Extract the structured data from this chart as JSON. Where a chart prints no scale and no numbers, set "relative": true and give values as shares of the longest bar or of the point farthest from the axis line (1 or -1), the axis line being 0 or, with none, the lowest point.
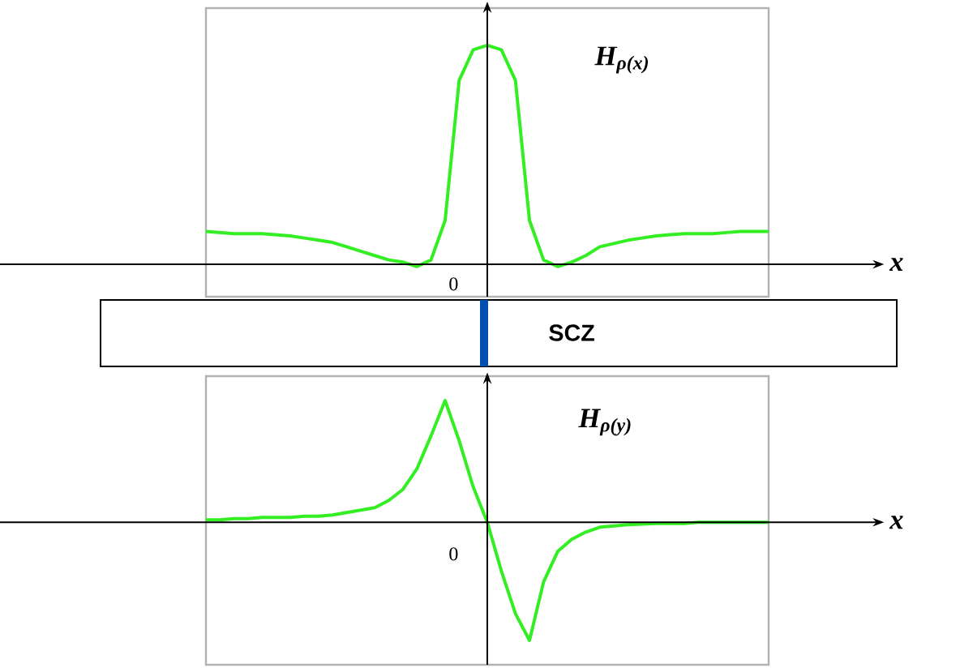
{
  "chart_data": [
    {
      "type": "line",
      "relative": true,
      "xlabel": "x",
      "legend": false,
      "categories": [
        null,
        null,
        null,
        null,
        null,
        null,
        null,
        null,
        null,
        null,
        null,
        null,
        null,
        null,
        null,
        null,
        null,
        null,
        null,
        null,
        null,
        null,
        null,
        null,
        null,
        null,
        null,
        null,
        null,
        null,
        null,
        null,
        null,
        null,
        null,
        null,
        null,
        null,
        null,
        null,
        null
      ],
      "series": [
        {
          "name": "H$_{ρ(x)}$",
          "color": "#33ee22",
          "values": [
            0.15,
            0.145,
            0.14,
            0.14,
            0.14,
            0.135,
            0.13,
            0.12,
            0.11,
            0.1,
            0.08,
            0.06,
            0.04,
            0.02,
            0.01,
            -0.01,
            0.02,
            0.2,
            0.84,
            0.98,
            1,
            0.98,
            0.84,
            0.2,
            0.02,
            -0.01,
            0.01,
            0.04,
            0.08,
            0.095,
            0.11,
            0.12,
            0.13,
            0.135,
            0.14,
            0.14,
            0.14,
            0.145,
            0.15,
            0.15,
            0.15
          ]
        }
      ],
      "annotations": [
        "0",
        "SCZ"
      ]
    },
    {
      "type": "line",
      "relative": true,
      "xlabel": "x",
      "legend": false,
      "categories": [
        null,
        null,
        null,
        null,
        null,
        null,
        null,
        null,
        null,
        null,
        null,
        null,
        null,
        null,
        null,
        null,
        null,
        null,
        null,
        null,
        null,
        null,
        null,
        null,
        null,
        null,
        null,
        null,
        null,
        null,
        null,
        null,
        null,
        null,
        null,
        null,
        null,
        null,
        null,
        null,
        null
      ],
      "series": [
        {
          "name": "H$_{ρ(y)}$",
          "color": "#33ee22",
          "values": [
            0.02,
            0.02,
            0.03,
            0.03,
            0.04,
            0.04,
            0.04,
            0.05,
            0.05,
            0.06,
            0.08,
            0.1,
            0.12,
            0.18,
            0.27,
            0.44,
            0.71,
            1,
            0.67,
            0.29,
            0,
            -0.4,
            -0.75,
            -0.97,
            -0.49,
            -0.24,
            -0.14,
            -0.08,
            -0.04,
            -0.03,
            -0.02,
            -0.015,
            -0.01,
            -0.01,
            -0.01,
            0,
            0,
            0,
            0,
            0,
            0
          ]
        }
      ],
      "annotations": [
        "0"
      ]
    }
  ]
}
